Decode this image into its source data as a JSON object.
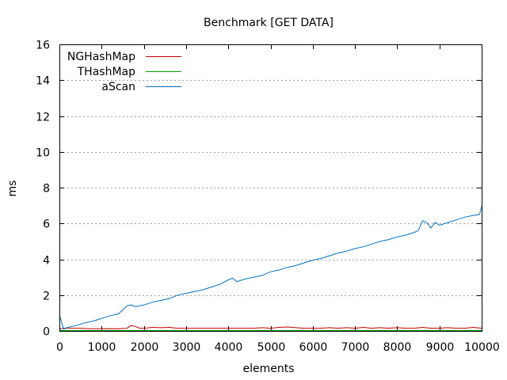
{
  "chart_data": {
    "type": "line",
    "title": "Benchmark [GET DATA]",
    "xlabel": "elements",
    "ylabel": "ms",
    "xlim": [
      0,
      10000
    ],
    "ylim": [
      0,
      16
    ],
    "xticks": [
      0,
      1000,
      2000,
      3000,
      4000,
      5000,
      6000,
      7000,
      8000,
      9000,
      10000
    ],
    "yticks": [
      0,
      2,
      4,
      6,
      8,
      10,
      12,
      14,
      16
    ],
    "grid": "horizontal-dashed",
    "legend_position": "top-left",
    "series": [
      {
        "name": "NGHashMap",
        "color": "#c00000",
        "x": [
          0,
          100,
          300,
          500,
          700,
          900,
          1000,
          1200,
          1400,
          1600,
          1700,
          1800,
          1900,
          2000,
          2200,
          2400,
          2600,
          2800,
          3000,
          3200,
          3400,
          3600,
          3800,
          4000,
          4200,
          4400,
          4600,
          4800,
          5000,
          5200,
          5400,
          5600,
          5800,
          6000,
          6200,
          6400,
          6600,
          6800,
          7000,
          7200,
          7400,
          7600,
          7800,
          8000,
          8200,
          8400,
          8600,
          8800,
          9000,
          9200,
          9400,
          9600,
          9800,
          10000
        ],
        "values": [
          0.1,
          0.15,
          0.15,
          0.15,
          0.12,
          0.12,
          0.12,
          0.13,
          0.12,
          0.15,
          0.3,
          0.25,
          0.15,
          0.15,
          0.2,
          0.18,
          0.2,
          0.15,
          0.15,
          0.15,
          0.15,
          0.15,
          0.15,
          0.15,
          0.15,
          0.15,
          0.15,
          0.18,
          0.15,
          0.2,
          0.22,
          0.18,
          0.15,
          0.15,
          0.15,
          0.18,
          0.15,
          0.18,
          0.15,
          0.2,
          0.15,
          0.18,
          0.15,
          0.18,
          0.15,
          0.15,
          0.2,
          0.15,
          0.15,
          0.18,
          0.15,
          0.15,
          0.2,
          0.15
        ]
      },
      {
        "name": "THashMap",
        "color": "#00a000",
        "x": [
          0,
          500,
          1000,
          2000,
          3000,
          4000,
          5000,
          6000,
          7000,
          8000,
          9000,
          10000
        ],
        "values": [
          0.02,
          0.02,
          0.02,
          0.02,
          0.02,
          0.02,
          0.02,
          0.02,
          0.02,
          0.02,
          0.02,
          0.02
        ]
      },
      {
        "name": "aScan",
        "color": "#0070c0",
        "x": [
          0,
          100,
          200,
          400,
          600,
          800,
          1000,
          1200,
          1400,
          1600,
          1700,
          1800,
          1900,
          2000,
          2200,
          2400,
          2600,
          2800,
          3000,
          3200,
          3400,
          3600,
          3800,
          4000,
          4100,
          4200,
          4400,
          4600,
          4800,
          5000,
          5200,
          5400,
          5600,
          5800,
          6000,
          6200,
          6400,
          6600,
          6800,
          7000,
          7200,
          7400,
          7600,
          7800,
          8000,
          8200,
          8400,
          8500,
          8600,
          8700,
          8800,
          8900,
          9000,
          9200,
          9400,
          9600,
          9800,
          9950,
          10000
        ],
        "values": [
          0.9,
          0.1,
          0.2,
          0.3,
          0.45,
          0.55,
          0.7,
          0.85,
          0.95,
          1.4,
          1.45,
          1.35,
          1.4,
          1.45,
          1.6,
          1.7,
          1.8,
          2.0,
          2.1,
          2.2,
          2.3,
          2.45,
          2.6,
          2.85,
          2.95,
          2.75,
          2.9,
          3.0,
          3.1,
          3.3,
          3.4,
          3.55,
          3.65,
          3.8,
          3.95,
          4.05,
          4.2,
          4.35,
          4.45,
          4.6,
          4.7,
          4.85,
          5.0,
          5.1,
          5.25,
          5.35,
          5.5,
          5.6,
          6.15,
          6.05,
          5.75,
          6.05,
          5.9,
          6.05,
          6.2,
          6.35,
          6.45,
          6.5,
          6.95
        ]
      }
    ]
  }
}
